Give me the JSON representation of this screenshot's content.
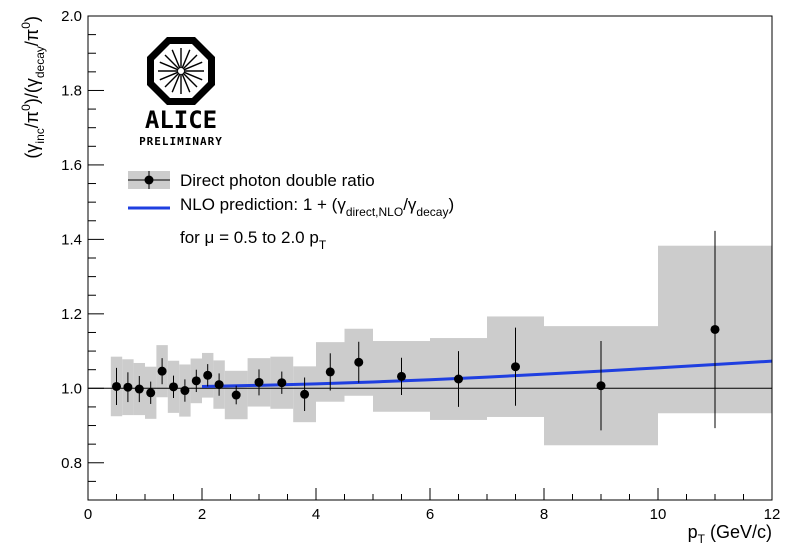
{
  "chart_data": {
    "type": "scatter",
    "title": "",
    "xlabel": "p_T (GeV/c)",
    "xlabel_main": "p",
    "xlabel_sub": "T",
    "xlabel_rest": " (GeV/c)",
    "ylabel": "(γ_inc/π^0)/(γ_decay/π^0)",
    "xlim": [
      0,
      12
    ],
    "ylim": [
      0.7,
      2.0
    ],
    "x_ticks": [
      0,
      2,
      4,
      6,
      8,
      10,
      12
    ],
    "y_ticks": [
      0.8,
      1.0,
      1.2,
      1.4,
      1.6,
      1.8,
      2.0
    ],
    "x_tick_labels": [
      "0",
      "2",
      "4",
      "6",
      "8",
      "10",
      "12"
    ],
    "y_tick_labels": [
      "0.8",
      "1.0",
      "1.2",
      "1.4",
      "1.6",
      "1.8",
      "2.0"
    ],
    "reference_line": 1.0,
    "series": [
      {
        "name": "Direct photon double ratio",
        "points": [
          {
            "x": 0.5,
            "y": 1.005,
            "err": 0.05,
            "sys": 0.08,
            "xlo": 0.4,
            "xhi": 0.6
          },
          {
            "x": 0.7,
            "y": 1.003,
            "err": 0.04,
            "sys": 0.075,
            "xlo": 0.6,
            "xhi": 0.8
          },
          {
            "x": 0.9,
            "y": 0.998,
            "err": 0.035,
            "sys": 0.07,
            "xlo": 0.8,
            "xhi": 1.0
          },
          {
            "x": 1.1,
            "y": 0.988,
            "err": 0.03,
            "sys": 0.07,
            "xlo": 1.0,
            "xhi": 1.2
          },
          {
            "x": 1.3,
            "y": 1.046,
            "err": 0.035,
            "sys": 0.07,
            "xlo": 1.2,
            "xhi": 1.4
          },
          {
            "x": 1.5,
            "y": 1.004,
            "err": 0.03,
            "sys": 0.07,
            "xlo": 1.4,
            "xhi": 1.6
          },
          {
            "x": 1.7,
            "y": 0.994,
            "err": 0.03,
            "sys": 0.07,
            "xlo": 1.6,
            "xhi": 1.8
          },
          {
            "x": 1.9,
            "y": 1.02,
            "err": 0.03,
            "sys": 0.06,
            "xlo": 1.8,
            "xhi": 2.0
          },
          {
            "x": 2.1,
            "y": 1.035,
            "err": 0.03,
            "sys": 0.06,
            "xlo": 2.0,
            "xhi": 2.2
          },
          {
            "x": 2.3,
            "y": 1.01,
            "err": 0.03,
            "sys": 0.065,
            "xlo": 2.2,
            "xhi": 2.4
          },
          {
            "x": 2.6,
            "y": 0.982,
            "err": 0.025,
            "sys": 0.065,
            "xlo": 2.4,
            "xhi": 2.8
          },
          {
            "x": 3.0,
            "y": 1.016,
            "err": 0.035,
            "sys": 0.065,
            "xlo": 2.8,
            "xhi": 3.2
          },
          {
            "x": 3.4,
            "y": 1.015,
            "err": 0.03,
            "sys": 0.07,
            "xlo": 3.2,
            "xhi": 3.6
          },
          {
            "x": 3.8,
            "y": 0.984,
            "err": 0.045,
            "sys": 0.075,
            "xlo": 3.6,
            "xhi": 4.0
          },
          {
            "x": 4.25,
            "y": 1.044,
            "err": 0.05,
            "sys": 0.08,
            "xlo": 4.0,
            "xhi": 4.5
          },
          {
            "x": 4.75,
            "y": 1.07,
            "err": 0.055,
            "sys": 0.09,
            "xlo": 4.5,
            "xhi": 5.0
          },
          {
            "x": 5.5,
            "y": 1.032,
            "err": 0.05,
            "sys": 0.095,
            "xlo": 5.0,
            "xhi": 6.0
          },
          {
            "x": 6.5,
            "y": 1.025,
            "err": 0.075,
            "sys": 0.11,
            "xlo": 6.0,
            "xhi": 7.0
          },
          {
            "x": 7.5,
            "y": 1.058,
            "err": 0.105,
            "sys": 0.135,
            "xlo": 7.0,
            "xhi": 8.0
          },
          {
            "x": 9.0,
            "y": 1.007,
            "err": 0.12,
            "sys": 0.16,
            "xlo": 8.0,
            "xhi": 10.0
          },
          {
            "x": 11.0,
            "y": 1.158,
            "err": 0.265,
            "sys": 0.225,
            "xlo": 10.0,
            "xhi": 12.0
          }
        ]
      },
      {
        "name": "NLO prediction: 1 + (γ_direct,NLO/γ_decay)",
        "x": [
          2.0,
          3.0,
          4.0,
          5.0,
          6.0,
          7.0,
          8.0,
          9.0,
          10.0,
          11.0,
          12.0
        ],
        "values": [
          1.005,
          1.008,
          1.012,
          1.017,
          1.023,
          1.03,
          1.038,
          1.046,
          1.055,
          1.064,
          1.073
        ],
        "color": "#1f3fe0"
      }
    ],
    "legend": {
      "position": "top-left",
      "entries": [
        {
          "text": "Direct photon double ratio"
        },
        {
          "text_main": "NLO prediction: 1 + (γ",
          "sub1": "direct,NLO",
          "mid": "/γ",
          "sub2": "decay",
          "end": ")"
        },
        {
          "text_main": "for μ = 0.5 to 2.0 p",
          "sub": "T"
        }
      ]
    },
    "colors": {
      "points": "#000000",
      "sys_box": "#cccccc",
      "nlo_line": "#1f3fe0"
    }
  },
  "logo": {
    "name": "ALICE",
    "subtitle": "PRELIMINARY"
  }
}
